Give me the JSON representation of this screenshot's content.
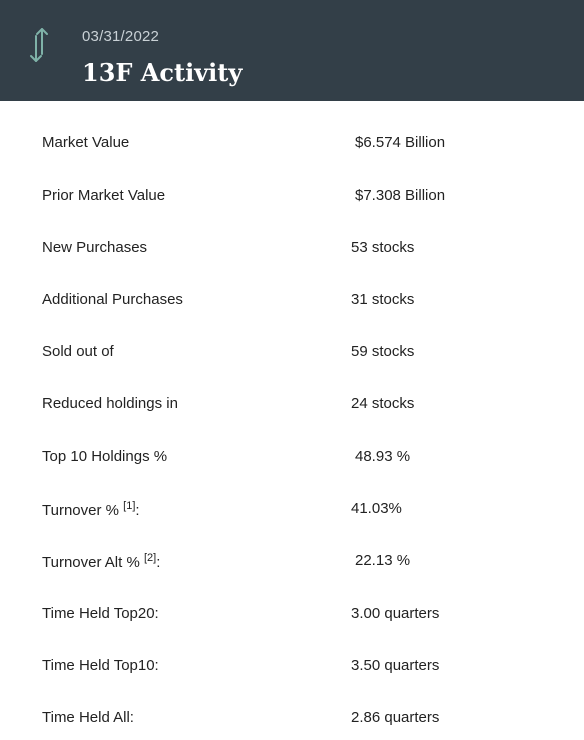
{
  "header": {
    "date": "03/31/2022",
    "title": "13F Activity",
    "icon": "up-down-arrows-icon"
  },
  "rows": [
    {
      "label": "Market Value",
      "value": "$6.574 Billion"
    },
    {
      "label": "Prior Market Value",
      "value": "$7.308 Billion"
    },
    {
      "label": "New Purchases",
      "value": "53 stocks"
    },
    {
      "label": "Additional Purchases",
      "value": "31 stocks"
    },
    {
      "label": "Sold out of",
      "value": "59 stocks"
    },
    {
      "label": "Reduced holdings in",
      "value": "24 stocks"
    },
    {
      "label": "Top 10 Holdings %",
      "value": "48.93 %"
    },
    {
      "label": "Turnover %",
      "sup": "[1]",
      "suffix": ":",
      "value": "41.03%"
    },
    {
      "label": "Turnover Alt %",
      "sup": "[2]",
      "suffix": ":",
      "value": "22.13 %"
    },
    {
      "label": "Time Held Top20:",
      "value": "3.00 quarters"
    },
    {
      "label": "Time Held Top10:",
      "value": "3.50 quarters"
    },
    {
      "label": "Time Held All:",
      "value": "2.86 quarters"
    }
  ]
}
